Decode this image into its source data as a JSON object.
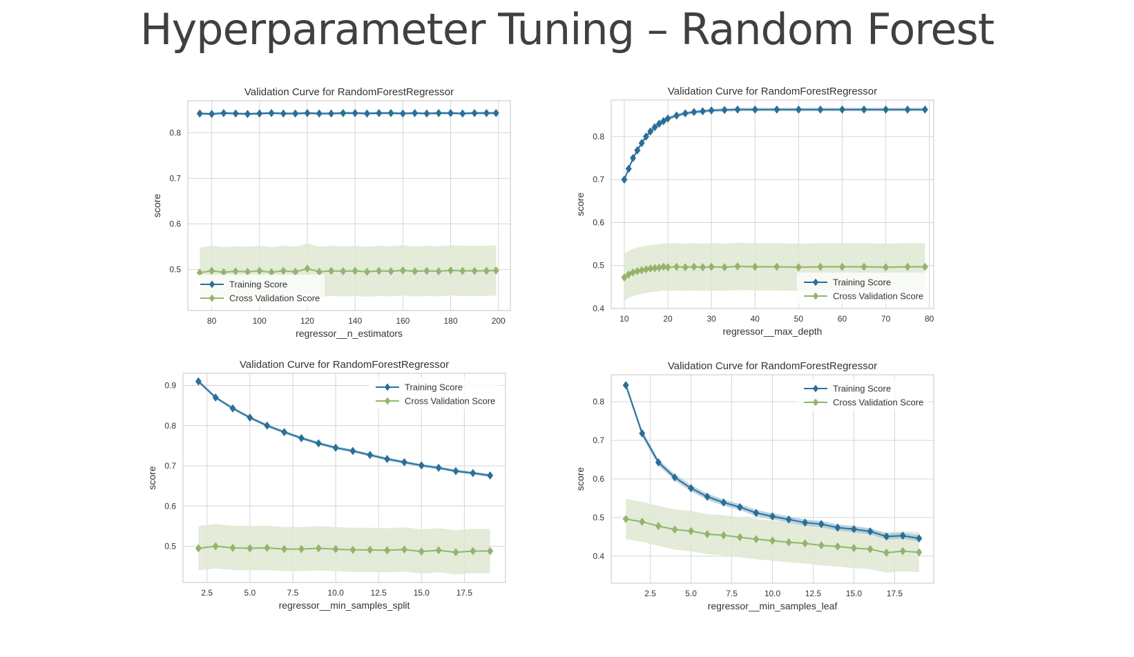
{
  "slide": {
    "title": "Hyperparameter Tuning – Random Forest"
  },
  "colors": {
    "train": "#2a6f97",
    "cv": "#93b46c",
    "cv_band": "#dfe8d2",
    "train_band": "#9cc0d8",
    "grid": "#d4d4d4",
    "frame": "#cfcfcf",
    "text": "#333333"
  },
  "chart_data": [
    {
      "type": "line",
      "title": "Validation Curve for RandomForestRegressor",
      "xlabel": "regressor__n_estimators",
      "ylabel": "score",
      "xlim": [
        70,
        205
      ],
      "ylim": [
        0.41,
        0.87
      ],
      "xticks": [
        80,
        100,
        120,
        140,
        160,
        180,
        200
      ],
      "xtick_labels": [
        "80",
        "100",
        "120",
        "140",
        "160",
        "180",
        "200"
      ],
      "yticks": [
        0.5,
        0.6,
        0.7,
        0.8
      ],
      "ytick_labels": [
        "0.5",
        "0.6",
        "0.7",
        "0.8"
      ],
      "legend": {
        "position": "lower-left",
        "entries": [
          "Training Score",
          "Cross Validation Score"
        ]
      },
      "grid": true,
      "series": [
        {
          "name": "Training Score",
          "x": [
            75,
            80,
            85,
            90,
            95,
            100,
            105,
            110,
            115,
            120,
            125,
            130,
            135,
            140,
            145,
            150,
            155,
            160,
            165,
            170,
            175,
            180,
            185,
            190,
            195,
            199
          ],
          "y": [
            0.842,
            0.841,
            0.843,
            0.842,
            0.841,
            0.842,
            0.843,
            0.842,
            0.842,
            0.843,
            0.842,
            0.842,
            0.843,
            0.843,
            0.842,
            0.843,
            0.843,
            0.842,
            0.843,
            0.842,
            0.843,
            0.843,
            0.842,
            0.843,
            0.843,
            0.843
          ],
          "band": 0.003
        },
        {
          "name": "Cross Validation Score",
          "x": [
            75,
            80,
            85,
            90,
            95,
            100,
            105,
            110,
            115,
            120,
            125,
            130,
            135,
            140,
            145,
            150,
            155,
            160,
            165,
            170,
            175,
            180,
            185,
            190,
            195,
            199
          ],
          "y": [
            0.493,
            0.497,
            0.494,
            0.496,
            0.495,
            0.497,
            0.494,
            0.497,
            0.495,
            0.502,
            0.495,
            0.497,
            0.496,
            0.497,
            0.495,
            0.497,
            0.496,
            0.498,
            0.496,
            0.497,
            0.496,
            0.498,
            0.497,
            0.497,
            0.497,
            0.498
          ],
          "band": 0.055
        }
      ]
    },
    {
      "type": "line",
      "title": "Validation Curve for RandomForestRegressor",
      "xlabel": "regressor__max_depth",
      "ylabel": "score",
      "xlim": [
        7,
        81
      ],
      "ylim": [
        0.4,
        0.885
      ],
      "xticks": [
        10,
        20,
        30,
        40,
        50,
        60,
        70,
        80
      ],
      "xtick_labels": [
        "10",
        "20",
        "30",
        "40",
        "50",
        "60",
        "70",
        "80"
      ],
      "yticks": [
        0.4,
        0.5,
        0.6,
        0.7,
        0.8
      ],
      "ytick_labels": [
        "0.4",
        "0.5",
        "0.6",
        "0.7",
        "0.8"
      ],
      "legend": {
        "position": "lower-right",
        "entries": [
          "Training Score",
          "Cross Validation Score"
        ]
      },
      "grid": true,
      "series": [
        {
          "name": "Training Score",
          "x": [
            10,
            11,
            12,
            13,
            14,
            15,
            16,
            17,
            18,
            19,
            20,
            22,
            24,
            26,
            28,
            30,
            33,
            36,
            40,
            45,
            50,
            55,
            60,
            65,
            70,
            75,
            79
          ],
          "y": [
            0.7,
            0.725,
            0.75,
            0.768,
            0.785,
            0.8,
            0.812,
            0.822,
            0.83,
            0.836,
            0.842,
            0.849,
            0.854,
            0.857,
            0.859,
            0.861,
            0.862,
            0.863,
            0.863,
            0.863,
            0.863,
            0.863,
            0.863,
            0.863,
            0.863,
            0.863,
            0.863
          ],
          "band": 0.004
        },
        {
          "name": "Cross Validation Score",
          "x": [
            10,
            11,
            12,
            13,
            14,
            15,
            16,
            17,
            18,
            19,
            20,
            22,
            24,
            26,
            28,
            30,
            33,
            36,
            40,
            45,
            50,
            55,
            60,
            65,
            70,
            75,
            79
          ],
          "y": [
            0.472,
            0.479,
            0.484,
            0.487,
            0.489,
            0.491,
            0.493,
            0.494,
            0.495,
            0.497,
            0.496,
            0.497,
            0.496,
            0.497,
            0.496,
            0.497,
            0.496,
            0.498,
            0.497,
            0.497,
            0.496,
            0.497,
            0.497,
            0.497,
            0.496,
            0.497,
            0.497
          ],
          "band": 0.055
        }
      ]
    },
    {
      "type": "line",
      "title": "Validation Curve for RandomForestRegressor",
      "xlabel": "regressor__min_samples_split",
      "ylabel": "score",
      "xlim": [
        1.1,
        19.9
      ],
      "ylim": [
        0.41,
        0.93
      ],
      "xticks": [
        2.5,
        5.0,
        7.5,
        10.0,
        12.5,
        15.0,
        17.5
      ],
      "xtick_labels": [
        "2.5",
        "5.0",
        "7.5",
        "10.0",
        "12.5",
        "15.0",
        "17.5"
      ],
      "yticks": [
        0.5,
        0.6,
        0.7,
        0.8,
        0.9
      ],
      "ytick_labels": [
        "0.5",
        "0.6",
        "0.7",
        "0.8",
        "0.9"
      ],
      "legend": {
        "position": "upper-right",
        "entries": [
          "Training Score",
          "Cross Validation Score"
        ]
      },
      "grid": true,
      "series": [
        {
          "name": "Training Score",
          "x": [
            2,
            3,
            4,
            5,
            6,
            7,
            8,
            9,
            10,
            11,
            12,
            13,
            14,
            15,
            16,
            17,
            18,
            19
          ],
          "y": [
            0.91,
            0.87,
            0.843,
            0.82,
            0.8,
            0.784,
            0.769,
            0.756,
            0.745,
            0.737,
            0.727,
            0.717,
            0.709,
            0.701,
            0.695,
            0.687,
            0.682,
            0.676
          ],
          "band": 0.004
        },
        {
          "name": "Cross Validation Score",
          "x": [
            2,
            3,
            4,
            5,
            6,
            7,
            8,
            9,
            10,
            11,
            12,
            13,
            14,
            15,
            16,
            17,
            18,
            19
          ],
          "y": [
            0.495,
            0.5,
            0.496,
            0.495,
            0.496,
            0.493,
            0.493,
            0.495,
            0.493,
            0.491,
            0.491,
            0.49,
            0.492,
            0.487,
            0.49,
            0.485,
            0.488,
            0.488
          ],
          "band": 0.055
        }
      ]
    },
    {
      "type": "line",
      "title": "Validation Curve for RandomForestRegressor",
      "xlabel": "regressor__min_samples_leaf",
      "ylabel": "score",
      "xlim": [
        0.1,
        19.9
      ],
      "ylim": [
        0.33,
        0.87
      ],
      "xticks": [
        2.5,
        5.0,
        7.5,
        10.0,
        12.5,
        15.0,
        17.5
      ],
      "xtick_labels": [
        "2.5",
        "5.0",
        "7.5",
        "10.0",
        "12.5",
        "15.0",
        "17.5"
      ],
      "yticks": [
        0.4,
        0.5,
        0.6,
        0.7,
        0.8
      ],
      "ytick_labels": [
        "0.4",
        "0.5",
        "0.6",
        "0.7",
        "0.8"
      ],
      "legend": {
        "position": "upper-right",
        "entries": [
          "Training Score",
          "Cross Validation Score"
        ]
      },
      "grid": true,
      "series": [
        {
          "name": "Training Score",
          "x": [
            1,
            2,
            3,
            4,
            5,
            6,
            7,
            8,
            9,
            10,
            11,
            12,
            13,
            14,
            15,
            16,
            17,
            18,
            19
          ],
          "y": [
            0.843,
            0.718,
            0.643,
            0.604,
            0.576,
            0.554,
            0.539,
            0.527,
            0.512,
            0.503,
            0.495,
            0.487,
            0.483,
            0.474,
            0.47,
            0.464,
            0.451,
            0.453,
            0.446
          ],
          "band": 0.008
        },
        {
          "name": "Cross Validation Score",
          "x": [
            1,
            2,
            3,
            4,
            5,
            6,
            7,
            8,
            9,
            10,
            11,
            12,
            13,
            14,
            15,
            16,
            17,
            18,
            19
          ],
          "y": [
            0.496,
            0.489,
            0.478,
            0.469,
            0.465,
            0.457,
            0.454,
            0.449,
            0.444,
            0.44,
            0.436,
            0.433,
            0.428,
            0.425,
            0.421,
            0.418,
            0.409,
            0.413,
            0.41
          ],
          "band": 0.052
        }
      ]
    }
  ]
}
